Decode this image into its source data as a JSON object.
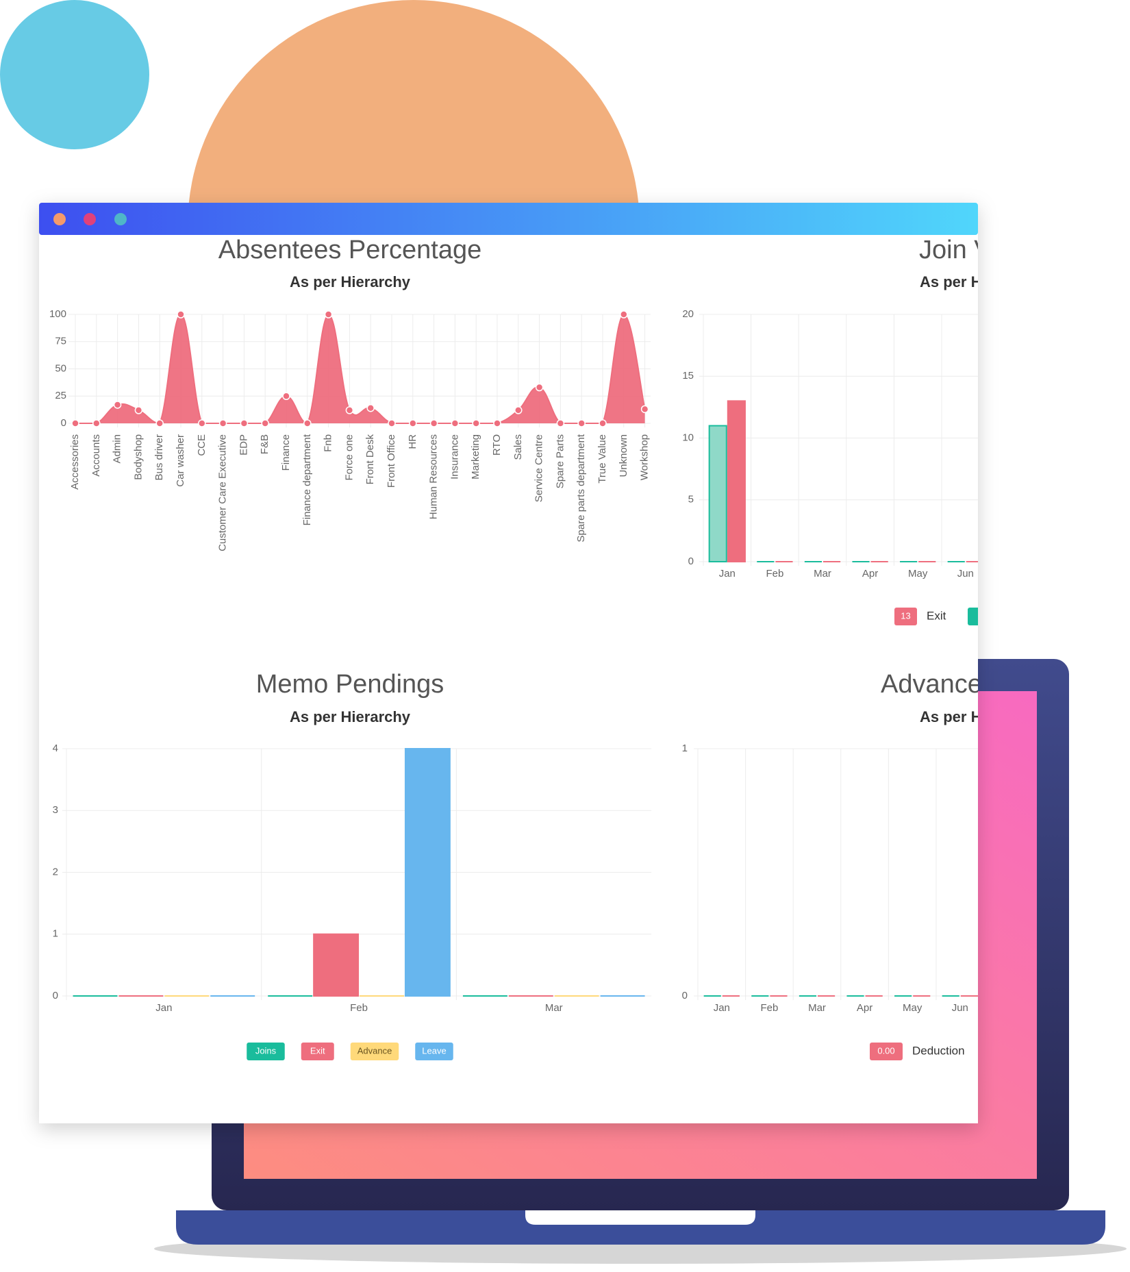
{
  "chart_data": [
    {
      "type": "area",
      "title": "Absentees Percentage",
      "subtitle": "As per Hierarchy",
      "categories": [
        "Accessories",
        "Accounts",
        "Admin",
        "Bodyshop",
        "Bus driver",
        "Car washer",
        "CCE",
        "Customer Care Executive",
        "EDP",
        "F&B",
        "Finance",
        "Finance department",
        "Fnb",
        "Force one",
        "Front Desk",
        "Front Office",
        "HR",
        "Human Resources",
        "Insurance",
        "Marketing",
        "RTO",
        "Sales",
        "Service Centre",
        "Spare Parts",
        "Spare parts department",
        "True Value",
        "Unknown",
        "Workshop"
      ],
      "values": [
        0,
        0,
        17,
        12,
        0,
        100,
        0,
        0,
        0,
        0,
        25,
        0,
        100,
        12,
        14,
        0,
        0,
        0,
        0,
        0,
        0,
        12,
        33,
        0,
        0,
        0,
        100,
        13
      ],
      "color": "#ee6e7e",
      "ylim": [
        0,
        100
      ],
      "yticks": [
        0,
        25,
        50,
        75,
        100
      ],
      "grid": true
    },
    {
      "type": "bar",
      "title": "Join V",
      "subtitle": "As per H",
      "categories": [
        "Jan",
        "Feb",
        "Mar",
        "Apr",
        "May",
        "Jun"
      ],
      "series": [
        {
          "color": "#1abc9c",
          "values": [
            11,
            0,
            0,
            0,
            0,
            0
          ]
        },
        {
          "name": "Exit",
          "color": "#ee6e7e",
          "values": [
            13,
            0,
            0,
            0,
            0,
            0
          ],
          "legend_badge": "13"
        }
      ],
      "ylim": [
        0,
        20
      ],
      "yticks": [
        0,
        5,
        10,
        15,
        20
      ],
      "grid": true
    },
    {
      "type": "bar",
      "title": "Memo Pendings",
      "subtitle": "As per Hierarchy",
      "categories": [
        "Jan",
        "Feb",
        "Mar"
      ],
      "series": [
        {
          "name": "Joins",
          "color": "#1abc9c",
          "values": [
            0,
            0,
            0
          ]
        },
        {
          "name": "Exit",
          "color": "#ee6e7e",
          "values": [
            0,
            1,
            0
          ]
        },
        {
          "name": "Advance",
          "color": "#ffd97a",
          "values": [
            0,
            0,
            0
          ]
        },
        {
          "name": "Leave",
          "color": "#67b6ee",
          "values": [
            0,
            4,
            0
          ]
        }
      ],
      "ylim": [
        0,
        4
      ],
      "yticks": [
        0,
        1,
        2,
        3,
        4
      ],
      "grid": true
    },
    {
      "type": "bar",
      "title": "Advance",
      "subtitle": "As per H",
      "categories": [
        "Jan",
        "Feb",
        "Mar",
        "Apr",
        "May",
        "Jun"
      ],
      "series": [
        {
          "color": "#1abc9c",
          "values": [
            0,
            0,
            0,
            0,
            0,
            0
          ]
        },
        {
          "name": "Deduction",
          "color": "#ee6e7e",
          "values": [
            0,
            0,
            0,
            0,
            0,
            0
          ],
          "legend_badge": "0.00"
        }
      ],
      "ylim": [
        0,
        1
      ],
      "yticks": [
        0,
        1
      ],
      "grid": true
    }
  ]
}
